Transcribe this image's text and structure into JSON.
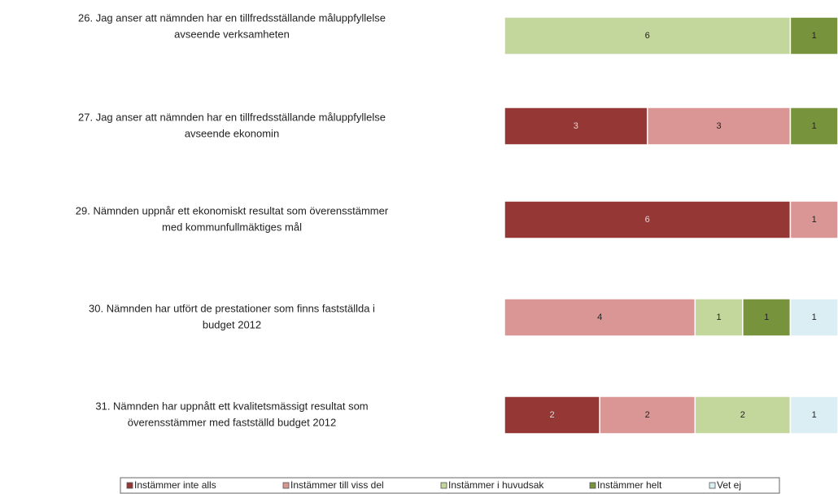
{
  "chart_data": {
    "type": "stacked_barh",
    "categories": [
      [
        "26. Jag anser att nämnden har en tillfredsställande måluppfyllelse",
        "avseende verksamheten"
      ],
      [
        "27. Jag anser att nämnden har en tillfredsställande måluppfyllelse",
        "avseende ekonomin"
      ],
      [
        "29. Nämnden uppnår ett ekonomiskt resultat som överensstämmer",
        "med kommunfullmäktiges mål"
      ],
      [
        "30. Nämnden har utfört de prestationer som finns fastställda i",
        "budget 2012"
      ],
      [
        "31. Nämnden har uppnått ett kvalitetsmässigt resultat som",
        "överensstämmer med fastställd budget 2012"
      ]
    ],
    "series": [
      {
        "name": "Instämmer inte alls",
        "color": "#953735",
        "values": [
          null,
          3,
          6,
          null,
          2
        ]
      },
      {
        "name": "Instämmer till viss del",
        "color": "#d99694",
        "values": [
          null,
          3,
          1,
          4,
          2
        ]
      },
      {
        "name": "Instämmer i huvudsak",
        "color": "#c3d69b",
        "values": [
          6,
          null,
          null,
          1,
          2
        ]
      },
      {
        "name": "Instämmer helt",
        "color": "#77933c",
        "values": [
          1,
          1,
          null,
          1,
          null
        ]
      },
      {
        "name": "Vet ej",
        "color": "#dbeef4",
        "values": [
          null,
          null,
          null,
          1,
          1
        ]
      }
    ]
  }
}
